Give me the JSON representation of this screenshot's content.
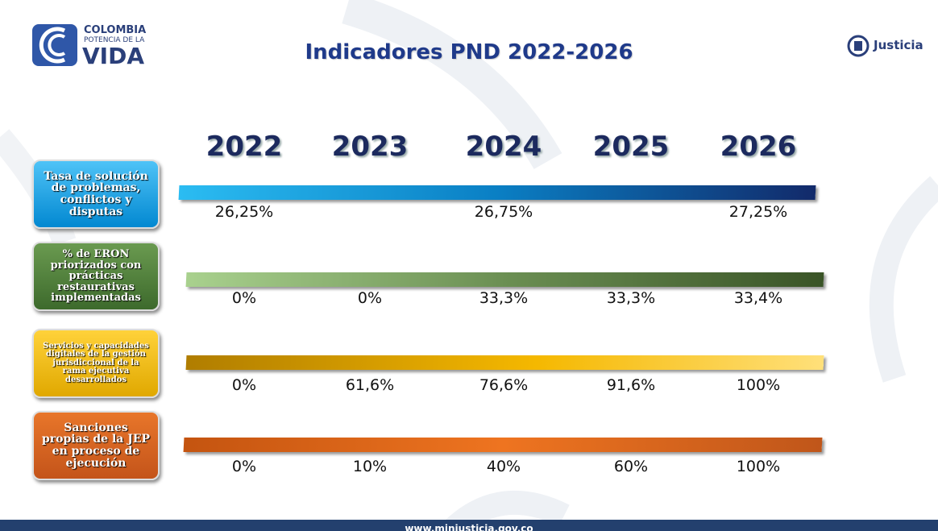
{
  "header": {
    "logo": {
      "line1": "COLOMBIA",
      "line2": "POTENCIA DE LA",
      "line3": "VIDA"
    },
    "title": "Indicadores PND 2022-2026",
    "ministry": "Justicia"
  },
  "years": [
    "2022",
    "2023",
    "2024",
    "2025",
    "2026"
  ],
  "indicators": [
    {
      "label": "Tasa de solución de problemas, conflictos y disputas",
      "values": [
        "26,25%",
        null,
        "26,75%",
        null,
        "27,25%"
      ]
    },
    {
      "label": "% de ERON priorizados con prácticas restaurativas implementadas",
      "values": [
        "0%",
        "0%",
        "33,3%",
        "33,3%",
        "33,4%"
      ]
    },
    {
      "label": "Servicios y capacidades digitales de la gestión jurisdiccional de la rama ejecutiva desarrollados",
      "values": [
        "0%",
        "61,6%",
        "76,6%",
        "91,6%",
        "100%"
      ]
    },
    {
      "label": "Sanciones propias de la JEP en proceso de ejecución",
      "values": [
        "0%",
        "10%",
        "40%",
        "60%",
        "100%"
      ]
    }
  ],
  "footer": {
    "url": "www.minjusticia.gov.co"
  }
}
